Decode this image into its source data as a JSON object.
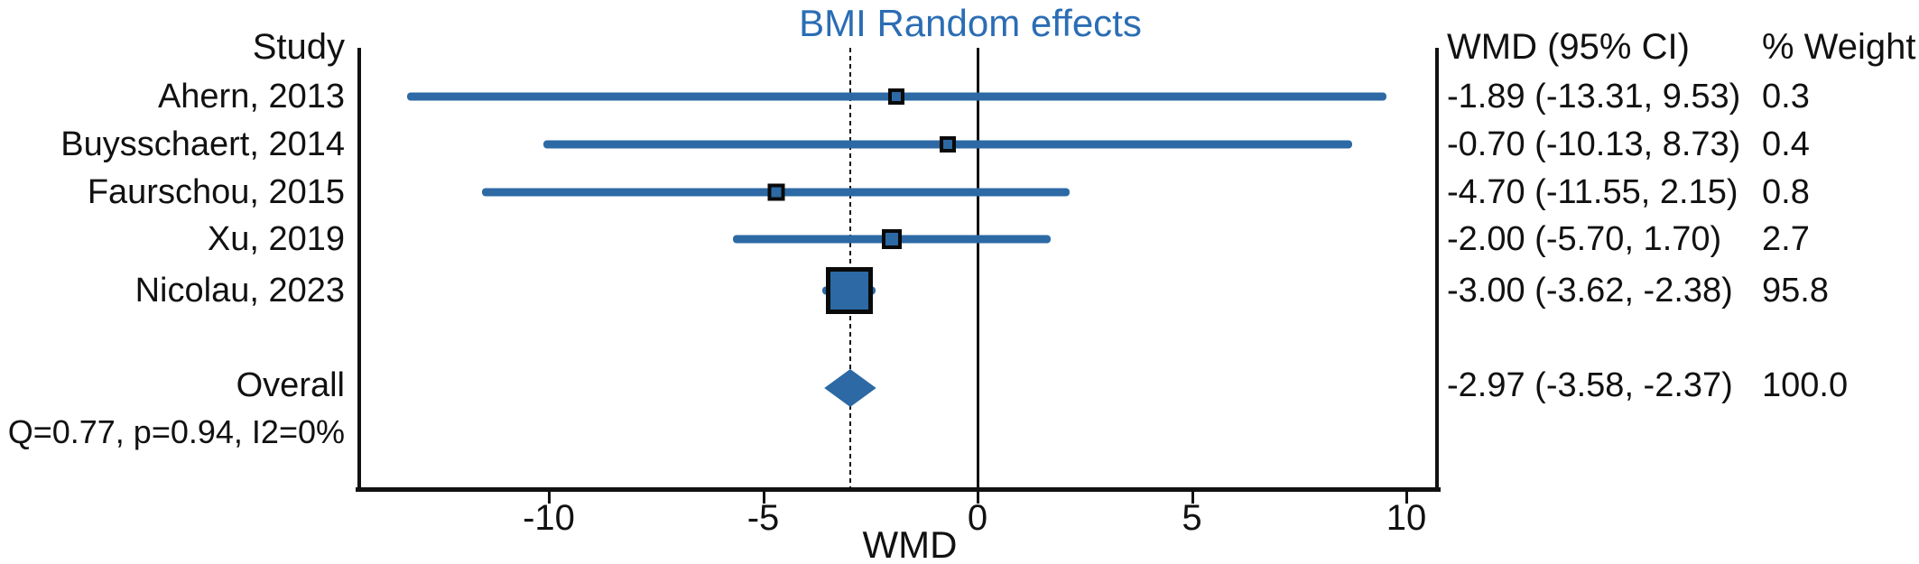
{
  "chart_data": {
    "type": "forest",
    "title": "BMI Random effects",
    "xlabel": "WMD",
    "columns": {
      "study": "Study",
      "wmd": "WMD (95% CI)",
      "weight": "% Weight"
    },
    "x_ticks": [
      -10,
      -5,
      0,
      5,
      10
    ],
    "x_tick_labels": [
      "-10",
      "-5",
      "0",
      "5",
      "10"
    ],
    "x_range": [
      -14.45,
      10.75
    ],
    "zero_line": 0,
    "overall_reference_line": -2.97,
    "studies": [
      {
        "label": "Ahern, 2013",
        "est": -1.89,
        "lo": -13.31,
        "hi": 9.53,
        "weight": 0.3,
        "wmd_text": "-1.89 (-13.31, 9.53)",
        "weight_text": "0.3"
      },
      {
        "label": "Buysschaert, 2014",
        "est": -0.7,
        "lo": -10.13,
        "hi": 8.73,
        "weight": 0.4,
        "wmd_text": "-0.70 (-10.13, 8.73)",
        "weight_text": "0.4"
      },
      {
        "label": "Faurschou, 2015",
        "est": -4.7,
        "lo": -11.55,
        "hi": 2.15,
        "weight": 0.8,
        "wmd_text": "-4.70 (-11.55, 2.15)",
        "weight_text": "0.8"
      },
      {
        "label": "Xu, 2019",
        "est": -2.0,
        "lo": -5.7,
        "hi": 1.7,
        "weight": 2.7,
        "wmd_text": "-2.00 (-5.70, 1.70)",
        "weight_text": "2.7"
      },
      {
        "label": "Nicolau, 2023",
        "est": -3.0,
        "lo": -3.62,
        "hi": -2.38,
        "weight": 95.8,
        "wmd_text": "-3.00 (-3.62, -2.38)",
        "weight_text": "95.8"
      }
    ],
    "overall": {
      "label": "Overall",
      "est": -2.97,
      "lo": -3.58,
      "hi": -2.37,
      "wmd_text": "-2.97 (-3.58, -2.37)",
      "weight_text": "100.0"
    },
    "heterogeneity": "Q=0.77, p=0.94, I2=0%",
    "colors": {
      "accent": "#2c69a5",
      "title": "#2b6db4",
      "axis": "#111111"
    },
    "legend": "none",
    "grid": false
  }
}
